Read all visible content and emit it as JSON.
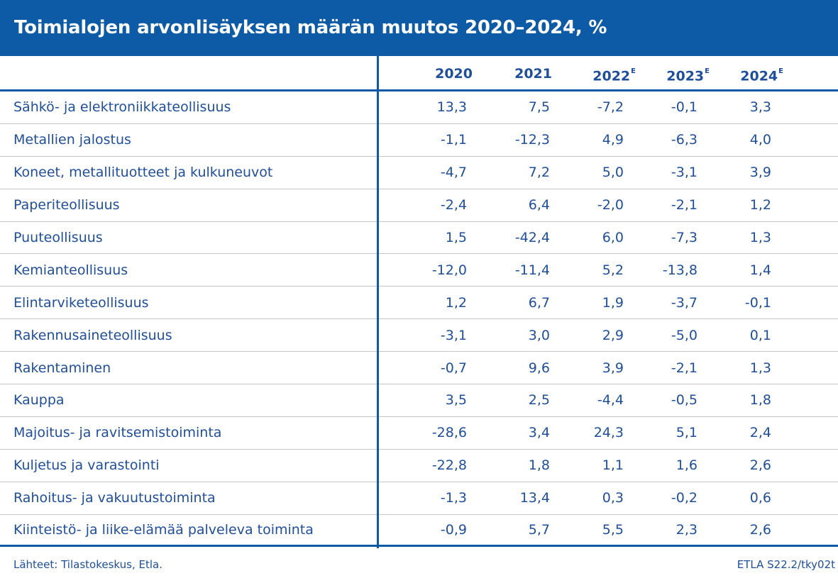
{
  "chart_data": {
    "type": "table",
    "title": "Toimialojen arvonlisäyksen määrän muutos 2020–2024, %",
    "columns": [
      {
        "year": "2020",
        "mark": ""
      },
      {
        "year": "2021",
        "mark": ""
      },
      {
        "year": "2022",
        "mark": "E"
      },
      {
        "year": "2023",
        "mark": "E"
      },
      {
        "year": "2024",
        "mark": "E"
      }
    ],
    "rows": [
      {
        "label": "Sähkö- ja elektroniikkateollisuus",
        "values": [
          "13,3",
          "7,5",
          "-7,2",
          "-0,1",
          "3,3"
        ]
      },
      {
        "label": "Metallien jalostus",
        "values": [
          "-1,1",
          "-12,3",
          "4,9",
          "-6,3",
          "4,0"
        ]
      },
      {
        "label": "Koneet, metallituotteet ja kulkuneuvot",
        "values": [
          "-4,7",
          "7,2",
          "5,0",
          "-3,1",
          "3,9"
        ]
      },
      {
        "label": "Paperiteollisuus",
        "values": [
          "-2,4",
          "6,4",
          "-2,0",
          "-2,1",
          "1,2"
        ]
      },
      {
        "label": "Puuteollisuus",
        "values": [
          "1,5",
          "-42,4",
          "6,0",
          "-7,3",
          "1,3"
        ]
      },
      {
        "label": "Kemianteollisuus",
        "values": [
          "-12,0",
          "-11,4",
          "5,2",
          "-13,8",
          "1,4"
        ]
      },
      {
        "label": "Elintarviketeollisuus",
        "values": [
          "1,2",
          "6,7",
          "1,9",
          "-3,7",
          "-0,1"
        ]
      },
      {
        "label": "Rakennusaineteollisuus",
        "values": [
          "-3,1",
          "3,0",
          "2,9",
          "-5,0",
          "0,1"
        ]
      },
      {
        "label": "Rakentaminen",
        "values": [
          "-0,7",
          "9,6",
          "3,9",
          "-2,1",
          "1,3"
        ]
      },
      {
        "label": "Kauppa",
        "values": [
          "3,5",
          "2,5",
          "-4,4",
          "-0,5",
          "1,8"
        ]
      },
      {
        "label": "Majoitus- ja ravitsemistoiminta",
        "values": [
          "-28,6",
          "3,4",
          "24,3",
          "5,1",
          "2,4"
        ]
      },
      {
        "label": "Kuljetus ja varastointi",
        "values": [
          "-22,8",
          "1,8",
          "1,1",
          "1,6",
          "2,6"
        ]
      },
      {
        "label": "Rahoitus- ja vakuutustoiminta",
        "values": [
          "-1,3",
          "13,4",
          "0,3",
          "-0,2",
          "0,6"
        ]
      },
      {
        "label": "Kiinteistö- ja liike-elämää palveleva toiminta",
        "values": [
          "-0,9",
          "5,7",
          "5,5",
          "2,3",
          "2,6"
        ]
      }
    ],
    "source": "Lähteet: Tilastokeskus, Etla.",
    "code": "ETLA S22.2/tky02t"
  },
  "colors": {
    "brand_blue": "#0d5aa7",
    "text_blue": "#1f4e9b",
    "row_rule": "#c6c6c6"
  }
}
